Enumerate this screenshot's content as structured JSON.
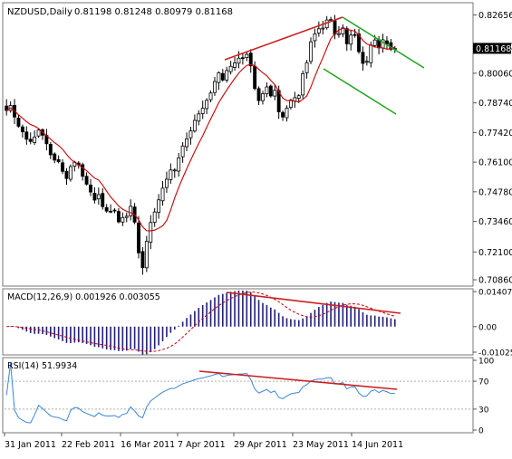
{
  "header": {
    "symbol": "NZDUSD,Daily",
    "ohlc": "0.81198 0.81248 0.80979 0.81168"
  },
  "price_panel": {
    "y_ticks": [
      "0.82656",
      "0.81260",
      "0.80060",
      "0.78740",
      "0.77420",
      "0.76100",
      "0.74780",
      "0.73460",
      "0.72100",
      "0.70860"
    ],
    "current_price_label": "0.81168"
  },
  "macd_panel": {
    "title": "MACD(12,26,9) 0.001926 0.003055",
    "y_ticks": [
      "0.014072",
      "0.00",
      "-0.010253"
    ]
  },
  "rsi_panel": {
    "title": "RSI(14) 51.9934",
    "y_ticks": [
      "100",
      "70",
      "30",
      "0"
    ]
  },
  "x_axis": {
    "labels": [
      "31 Jan 2011",
      "22 Feb 2011",
      "16 Mar 2011",
      "7 Apr 2011",
      "29 Apr 2011",
      "23 May 2011",
      "14 Jun 2011"
    ]
  },
  "colors": {
    "bull_candle": "#ffffff",
    "bear_candle": "#000000",
    "candle_outline": "#000000",
    "ma_line": "#cc0000",
    "trendline": "#cc1f1f",
    "channel": "#1aa51a",
    "macd_hist": "#20207a",
    "macd_signal": "#cc0000",
    "rsi_line": "#3a86d6",
    "panel_border": "#777777",
    "background": "#ffffff"
  },
  "chart_data": [
    {
      "type": "candlestick",
      "title": "NZDUSD,Daily",
      "x_labels": [
        "31 Jan 2011",
        "22 Feb 2011",
        "16 Mar 2011",
        "7 Apr 2011",
        "29 Apr 2011",
        "23 May 2011",
        "14 Jun 2011"
      ],
      "ylim": [
        0.7066,
        0.8308
      ],
      "close": [
        0.784,
        0.7862,
        0.7811,
        0.777,
        0.7745,
        0.7712,
        0.7702,
        0.7722,
        0.7753,
        0.773,
        0.7692,
        0.7643,
        0.7619,
        0.7612,
        0.7569,
        0.7537,
        0.759,
        0.761,
        0.7598,
        0.7547,
        0.7512,
        0.7477,
        0.7441,
        0.7465,
        0.7412,
        0.7392,
        0.7391,
        0.7394,
        0.7344,
        0.7363,
        0.7369,
        0.7413,
        0.7343,
        0.7206,
        0.714,
        0.7257,
        0.7341,
        0.7388,
        0.7442,
        0.7494,
        0.7534,
        0.7575,
        0.7575,
        0.7629,
        0.7682,
        0.7714,
        0.7749,
        0.7796,
        0.7825,
        0.785,
        0.7885,
        0.7918,
        0.7969,
        0.8008,
        0.7976,
        0.8018,
        0.8037,
        0.8052,
        0.8073,
        0.8074,
        0.809,
        0.8039,
        0.7938,
        0.7884,
        0.7915,
        0.7945,
        0.7905,
        0.793,
        0.7834,
        0.7811,
        0.7851,
        0.7886,
        0.7897,
        0.7906,
        0.8004,
        0.8053,
        0.8146,
        0.8181,
        0.8204,
        0.8207,
        0.8243,
        0.8245,
        0.818,
        0.8183,
        0.8208,
        0.8137,
        0.8176,
        0.8178,
        0.8102,
        0.805,
        0.8059,
        0.8131,
        0.8154,
        0.8119,
        0.8155,
        0.8136,
        0.8113,
        0.8117
      ],
      "ma_period": 8,
      "trendlines": [
        {
          "from": [
            0.8132,
            0.8132
          ],
          "to": [
            0.8282,
            0.8282
          ]
        }
      ],
      "channel": {
        "upper": [
          0.8282,
          0.811
        ],
        "lower": [
          0.813,
          0.7876
        ]
      }
    },
    {
      "type": "histogram",
      "title": "MACD(12,26,9) 0.001926 0.003055",
      "ylim": [
        -0.010253,
        0.014072
      ],
      "macd_value": 0.001926,
      "signal_value": 0.003055
    },
    {
      "type": "line",
      "title": "RSI(14) 51.9934",
      "ylim": [
        0,
        100
      ],
      "levels": [
        70,
        30
      ],
      "last_value": 51.9934
    }
  ]
}
